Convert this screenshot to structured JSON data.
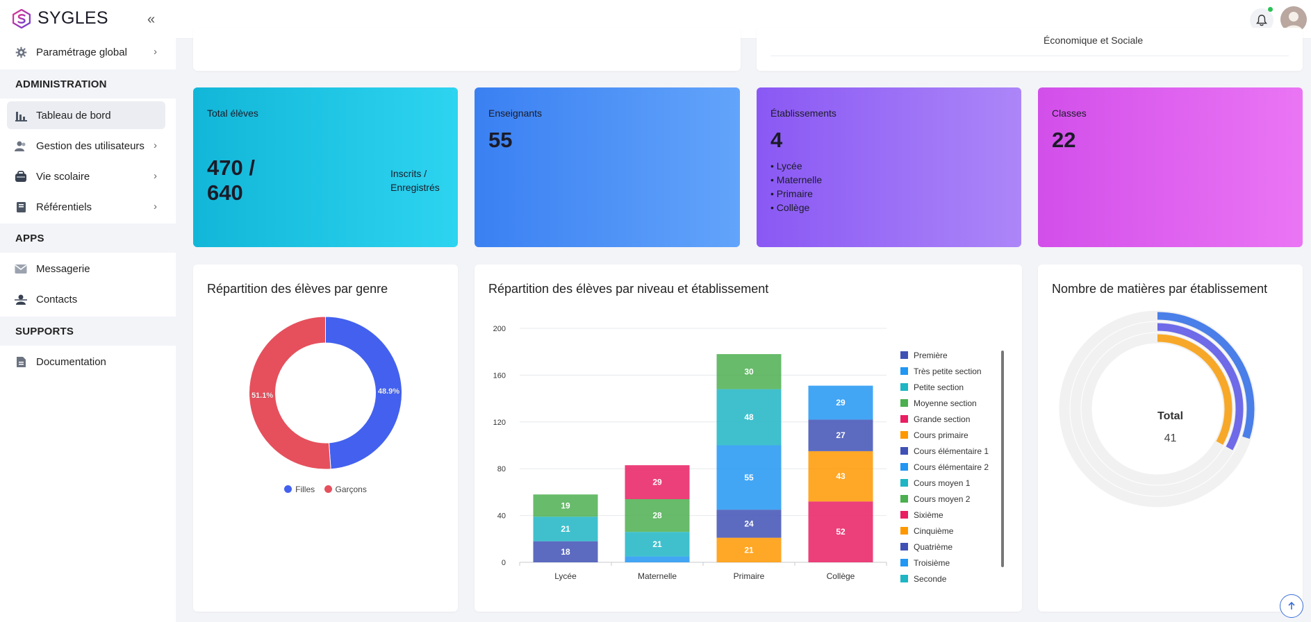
{
  "app": {
    "brand": "SYGLES"
  },
  "sidebar": {
    "global": {
      "label": "Paramétrage global"
    },
    "sections": {
      "administration": "ADMINISTRATION",
      "apps": "APPS",
      "supports": "SUPPORTS"
    },
    "admin_items": [
      {
        "label": "Tableau de bord",
        "icon": "bar-chart-icon",
        "active": true
      },
      {
        "label": "Gestion des utilisateurs",
        "icon": "users-icon"
      },
      {
        "label": "Vie scolaire",
        "icon": "school-bag-icon"
      },
      {
        "label": "Référentiels",
        "icon": "book-icon"
      }
    ],
    "apps_items": [
      {
        "label": "Messagerie",
        "icon": "mail-icon"
      },
      {
        "label": "Contacts",
        "icon": "contacts-icon"
      }
    ],
    "supports_items": [
      {
        "label": "Documentation",
        "icon": "document-icon"
      }
    ]
  },
  "top_partial": {
    "text": "Économique et Sociale"
  },
  "stats": {
    "eleves": {
      "title": "Total élèves",
      "value_line1": "470 /",
      "value_line2": "640",
      "caption_line1": "Inscrits /",
      "caption_line2": "Enregistrés",
      "gradient": [
        "#12b6d8",
        "#2fd4f0"
      ]
    },
    "enseignants": {
      "title": "Enseignants",
      "value": "55",
      "gradient": [
        "#3a80f2",
        "#62a4fb"
      ]
    },
    "etablissements": {
      "title": "Établissements",
      "value": "4",
      "list": [
        "• Lycée",
        "• Maternelle",
        "• Primaire",
        "• Collège"
      ],
      "gradient": [
        "#8c5cf4",
        "#ab84f8"
      ]
    },
    "classes": {
      "title": "Classes",
      "value": "22",
      "gradient": [
        "#d24fea",
        "#ea75f4"
      ]
    }
  },
  "genre_card": {
    "title": "Répartition des élèves par genre",
    "legend": [
      {
        "label": "Filles",
        "color": "#4361ee"
      },
      {
        "label": "Garçons",
        "color": "#e5505c"
      }
    ]
  },
  "niveau_card": {
    "title": "Répartition des élèves par niveau et établissement"
  },
  "matieres_card": {
    "title": "Nombre de matières par établissement",
    "total_label": "Total",
    "total_value": "41"
  },
  "chart_data": [
    {
      "type": "pie",
      "title": "Répartition des élèves par genre",
      "donut": true,
      "slices": [
        {
          "label": "Filles",
          "value": 48.9,
          "display": "48.9%",
          "color": "#4361ee"
        },
        {
          "label": "Garçons",
          "value": 51.1,
          "display": "51.1%",
          "color": "#e5505c"
        }
      ],
      "legend_position": "bottom"
    },
    {
      "type": "bar",
      "stacked": true,
      "title": "Répartition des élèves par niveau et établissement",
      "categories": [
        "Lycée",
        "Maternelle",
        "Primaire",
        "Collège"
      ],
      "ylim": [
        0,
        200
      ],
      "yticks": [
        0,
        40,
        80,
        120,
        160,
        200
      ],
      "grid": true,
      "legend_position": "right",
      "series": [
        {
          "name": "Première",
          "color": "#3f51b5",
          "values": [
            0,
            0,
            0,
            0
          ]
        },
        {
          "name": "Très petite section",
          "color": "#2196f3",
          "values": [
            0,
            5,
            0,
            0
          ]
        },
        {
          "name": "Petite section",
          "color": "#1eb5c4",
          "values": [
            0,
            21,
            0,
            0
          ]
        },
        {
          "name": "Moyenne section",
          "color": "#4caf50",
          "values": [
            0,
            28,
            0,
            0
          ]
        },
        {
          "name": "Grande section",
          "color": "#e91e63",
          "values": [
            0,
            29,
            0,
            0
          ]
        },
        {
          "name": "Cours primaire",
          "color": "#ff9800",
          "values": [
            0,
            0,
            21,
            0
          ]
        },
        {
          "name": "Cours élémentaire 1",
          "color": "#3f51b5",
          "values": [
            0,
            0,
            24,
            0
          ]
        },
        {
          "name": "Cours élémentaire 2",
          "color": "#2196f3",
          "values": [
            0,
            0,
            55,
            0
          ]
        },
        {
          "name": "Cours moyen 1",
          "color": "#1eb5c4",
          "values": [
            0,
            0,
            48,
            0
          ]
        },
        {
          "name": "Cours moyen 2",
          "color": "#4caf50",
          "values": [
            0,
            0,
            30,
            0
          ]
        },
        {
          "name": "Sixième",
          "color": "#e91e63",
          "values": [
            0,
            0,
            0,
            52
          ]
        },
        {
          "name": "Cinquième",
          "color": "#ff9800",
          "values": [
            0,
            0,
            0,
            43
          ]
        },
        {
          "name": "Quatrième",
          "color": "#3f51b5",
          "values": [
            18,
            0,
            0,
            27
          ]
        },
        {
          "name": "Troisième",
          "color": "#2196f3",
          "values": [
            0,
            0,
            0,
            29
          ]
        },
        {
          "name": "Seconde",
          "color": "#1eb5c4",
          "values": [
            21,
            0,
            0,
            0
          ]
        },
        {
          "name": "",
          "color": "#4caf50",
          "values": [
            19,
            0,
            0,
            0
          ]
        }
      ]
    },
    {
      "type": "radialBar",
      "title": "Nombre de matières par établissement",
      "total_label": "Total",
      "total": 41,
      "series": [
        {
          "color": "#4a7ee8",
          "value": 30
        },
        {
          "color": "#6e6ae8",
          "value": 33
        },
        {
          "color": "#f7a829",
          "value": 33
        }
      ]
    }
  ]
}
